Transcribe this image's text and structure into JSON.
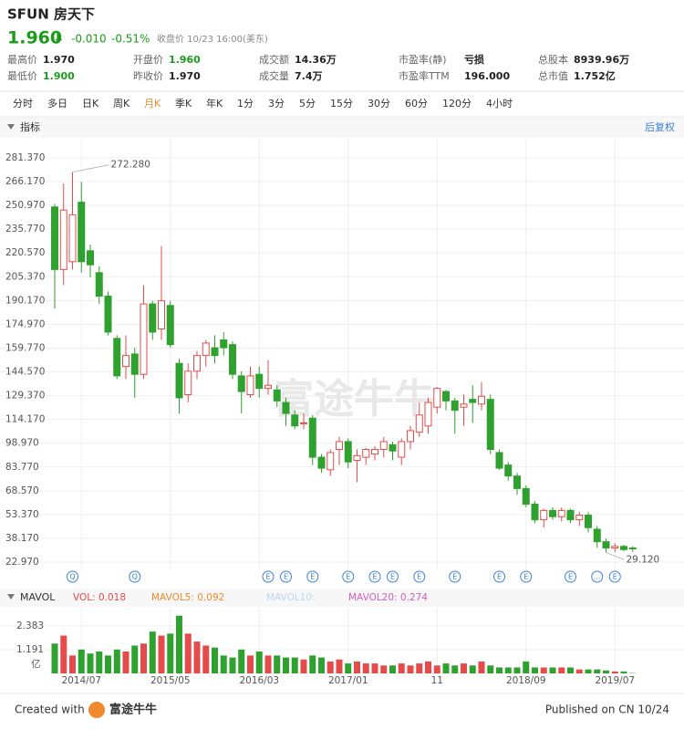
{
  "header": {
    "symbol": "SFUN 房天下",
    "price": "1.960",
    "arrow": "⬇",
    "change": "-0.010",
    "change_pct": "-0.51%",
    "status": "收盘价 10/23 16:00(美东)"
  },
  "stats": [
    [
      {
        "label": "最高价",
        "value": "1.970"
      },
      {
        "label": "开盘价",
        "value": "1.960",
        "color": "#1a9b1a"
      },
      {
        "label": "成交额",
        "value": "14.36万"
      },
      {
        "label": "市盈率(静)",
        "value": "亏损"
      },
      {
        "label": "总股本",
        "value": "8939.96万"
      }
    ],
    [
      {
        "label": "最低价",
        "value": "1.900",
        "color": "#1a9b1a"
      },
      {
        "label": "昨收价",
        "value": "1.970"
      },
      {
        "label": "成交量",
        "value": "7.4万"
      },
      {
        "label": "市盈率TTM",
        "value": "196.000"
      },
      {
        "label": "总市值",
        "value": "1.752亿"
      }
    ]
  ],
  "tabs": [
    "分时",
    "多日",
    "日K",
    "周K",
    "月K",
    "季K",
    "年K",
    "1分",
    "3分",
    "5分",
    "15分",
    "30分",
    "60分",
    "120分",
    "4小时"
  ],
  "active_tab_index": 4,
  "toolbar": {
    "indicator": "指标",
    "adjust": "后复权"
  },
  "chart_data": [
    {
      "type": "candlestick",
      "watermark": "富途牛牛",
      "up_color": "#e64b4b",
      "down_color": "#2ea12e",
      "open": [
        250,
        210,
        215,
        253,
        222,
        208,
        193,
        166,
        148,
        156,
        143,
        188,
        172,
        187,
        150,
        130,
        145,
        155,
        160,
        165,
        162,
        142,
        130,
        143,
        134,
        133,
        125,
        117,
        112,
        115,
        90,
        82,
        95,
        100,
        88,
        90,
        92,
        95,
        98,
        90,
        100,
        106,
        110,
        122,
        132,
        126,
        122,
        127,
        124,
        127,
        93,
        85,
        78,
        70,
        60,
        50,
        56,
        52,
        56,
        50,
        53,
        44,
        36,
        32,
        33,
        32
      ],
      "high": [
        252,
        265,
        272.28,
        266,
        226,
        212,
        196,
        168,
        168,
        160,
        200,
        190,
        225,
        190,
        153,
        150,
        158,
        165,
        168,
        170,
        164,
        145,
        148,
        148,
        152,
        136,
        128,
        120,
        118,
        117,
        92,
        95,
        103,
        102,
        95,
        96,
        97,
        103,
        100,
        102,
        110,
        125,
        128,
        135,
        133,
        128,
        130,
        136,
        138,
        130,
        95,
        87,
        80,
        72,
        62,
        57,
        58,
        58,
        57,
        55,
        55,
        46,
        38,
        35,
        34,
        33
      ],
      "low": [
        185,
        200,
        210,
        208,
        205,
        188,
        168,
        140,
        140,
        128,
        140,
        165,
        165,
        160,
        118,
        125,
        140,
        148,
        150,
        155,
        140,
        118,
        128,
        128,
        130,
        122,
        110,
        108,
        108,
        85,
        80,
        78,
        85,
        83,
        74,
        85,
        88,
        90,
        88,
        85,
        95,
        103,
        105,
        118,
        120,
        105,
        110,
        112,
        120,
        92,
        82,
        75,
        66,
        58,
        48,
        45,
        50,
        49,
        48,
        46,
        42,
        32,
        29.12,
        29.5,
        30,
        29.5
      ],
      "close": [
        210,
        248,
        245,
        215,
        213,
        193,
        170,
        142,
        155,
        143,
        188,
        170,
        190,
        162,
        128,
        145,
        155,
        163,
        155,
        160,
        143,
        132,
        142,
        134,
        136,
        126,
        118,
        110,
        112,
        90,
        83,
        93,
        100,
        87,
        91,
        95,
        95,
        100,
        94,
        100,
        107,
        117,
        125,
        134,
        126,
        120,
        124,
        125,
        129,
        95,
        83,
        78,
        70,
        60,
        50,
        56,
        52,
        56,
        50,
        53,
        45,
        36,
        32,
        33,
        31,
        31.5
      ],
      "ylim": [
        22.97,
        281.37
      ],
      "yticks": [
        {
          "value": 22.97,
          "label": "22.970"
        },
        {
          "value": 38.17,
          "label": "38.170"
        },
        {
          "value": 53.37,
          "label": "53.370"
        },
        {
          "value": 68.57,
          "label": "68.570"
        },
        {
          "value": 83.77,
          "label": "83.770"
        },
        {
          "value": 98.97,
          "label": "98.970"
        },
        {
          "value": 114.17,
          "label": "114.170"
        },
        {
          "value": 129.37,
          "label": "129.370"
        },
        {
          "value": 144.57,
          "label": "144.570"
        },
        {
          "value": 159.77,
          "label": "159.770"
        },
        {
          "value": 174.97,
          "label": "174.970"
        },
        {
          "value": 190.17,
          "label": "190.170"
        },
        {
          "value": 205.37,
          "label": "205.370"
        },
        {
          "value": 220.57,
          "label": "220.570"
        },
        {
          "value": 235.77,
          "label": "235.770"
        },
        {
          "value": 250.97,
          "label": "250.970"
        },
        {
          "value": 266.17,
          "label": "266.170"
        },
        {
          "value": 281.37,
          "label": "281.370"
        }
      ],
      "annotations": [
        {
          "value": 272.28,
          "label": "272.280",
          "index": 2
        },
        {
          "value": 29.12,
          "label": "29.120",
          "index": 62
        }
      ],
      "events": [
        {
          "label": "Q",
          "index": 2
        },
        {
          "label": "Q",
          "index": 9
        },
        {
          "label": "E",
          "index": 24
        },
        {
          "label": "E",
          "index": 26
        },
        {
          "label": "E",
          "index": 29
        },
        {
          "label": "E",
          "index": 33
        },
        {
          "label": "E",
          "index": 36
        },
        {
          "label": "E",
          "index": 38
        },
        {
          "label": "E",
          "index": 41
        },
        {
          "label": "E",
          "index": 45
        },
        {
          "label": "E",
          "index": 50
        },
        {
          "label": "E",
          "index": 53
        },
        {
          "label": "E",
          "index": 58
        },
        {
          "label": "…",
          "index": 61
        },
        {
          "label": "E",
          "index": 63
        }
      ],
      "grid": true
    },
    {
      "type": "bar",
      "title": "MAVOL",
      "unit": "亿",
      "legend": [
        {
          "name": "VOL: 0.018",
          "color": "#e64b4b"
        },
        {
          "name": "MAVOL5: 0.092",
          "color": "#f08a2c"
        },
        {
          "name": "MAVOL10:",
          "color": "#bcd6ee"
        },
        {
          "name": "MAVOL20: 0.274",
          "color": "#d35cc0"
        }
      ],
      "categories": [
        null,
        null,
        null,
        "2014/07",
        null,
        null,
        null,
        null,
        null,
        null,
        null,
        null,
        null,
        "2015/05",
        null,
        null,
        null,
        null,
        null,
        null,
        null,
        null,
        null,
        "2016/03",
        null,
        null,
        null,
        null,
        null,
        null,
        null,
        null,
        null,
        "2017/01",
        null,
        null,
        null,
        null,
        null,
        null,
        null,
        null,
        null,
        "11",
        null,
        null,
        null,
        null,
        null,
        null,
        null,
        null,
        null,
        "2018/09",
        null,
        null,
        null,
        null,
        null,
        null,
        null,
        null,
        null,
        "2019/07",
        null,
        null
      ],
      "values": [
        1.5,
        1.9,
        0.9,
        1.2,
        1.0,
        1.1,
        0.9,
        1.2,
        1.1,
        1.4,
        1.5,
        2.1,
        1.9,
        2.0,
        2.9,
        2.0,
        1.6,
        1.4,
        1.3,
        0.9,
        0.8,
        1.2,
        0.9,
        1.1,
        0.9,
        0.9,
        0.8,
        0.8,
        0.7,
        0.9,
        0.8,
        0.6,
        0.7,
        0.5,
        0.6,
        0.5,
        0.5,
        0.4,
        0.4,
        0.5,
        0.4,
        0.5,
        0.6,
        0.4,
        0.5,
        0.4,
        0.5,
        0.4,
        0.6,
        0.4,
        0.3,
        0.3,
        0.3,
        0.6,
        0.3,
        0.3,
        0.3,
        0.3,
        0.3,
        0.2,
        0.2,
        0.2,
        0.15,
        0.1,
        0.1,
        0.018
      ],
      "ylim": [
        0,
        3.3
      ],
      "yticks": [
        1.191,
        2.383
      ],
      "grid": true
    }
  ],
  "footer": {
    "created": "Created with",
    "brand": "富途牛牛",
    "published": "Published on CN 10/24"
  }
}
